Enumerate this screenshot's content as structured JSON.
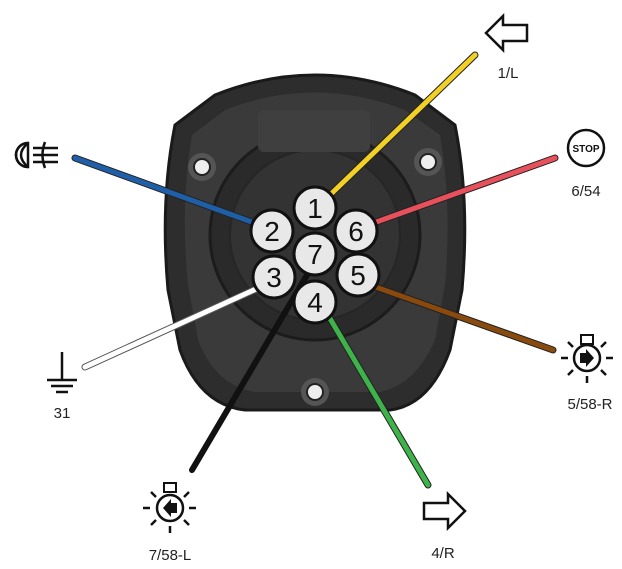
{
  "pins": [
    {
      "number": "1",
      "label": "1/L",
      "wire_color": "#f2d026",
      "icon": "left-arrow-icon"
    },
    {
      "number": "2",
      "label": "",
      "wire_color": "#1f5fa8",
      "icon": "fog-light-icon"
    },
    {
      "number": "3",
      "label": "31",
      "wire_color": "#ffffff",
      "icon": "ground-icon"
    },
    {
      "number": "4",
      "label": "4/R",
      "wire_color": "#3db34a",
      "icon": "right-arrow-icon"
    },
    {
      "number": "5",
      "label": "5/58-R",
      "wire_color": "#8a4a0e",
      "icon": "right-position-light-icon"
    },
    {
      "number": "6",
      "label": "6/54",
      "wire_color": "#e8505b",
      "icon": "stop-light-icon"
    },
    {
      "number": "7",
      "label": "7/58-L",
      "wire_color": "#111111",
      "icon": "left-position-light-icon"
    }
  ],
  "stop_icon_text": "STOP"
}
